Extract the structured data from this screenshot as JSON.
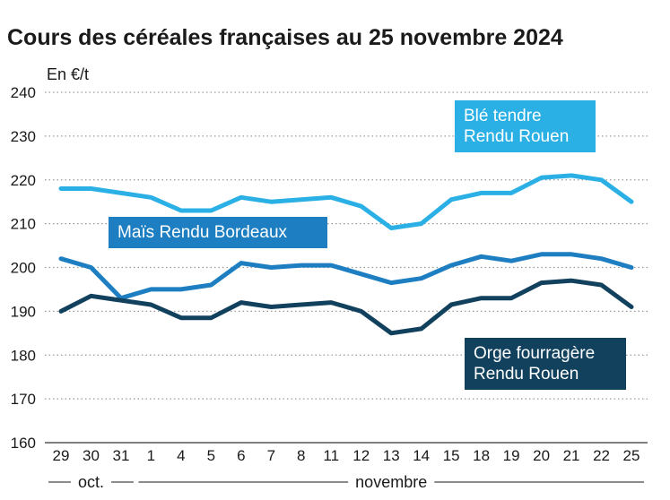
{
  "chart_data": {
    "type": "line",
    "title": "Cours des céréales françaises au 25 novembre 2024",
    "ylabel": "En €/t",
    "xlabel": "",
    "ylim": [
      160,
      240
    ],
    "yticks": [
      160,
      170,
      180,
      190,
      200,
      210,
      220,
      230,
      240
    ],
    "grid": "horizontal-dotted",
    "categories": [
      "29",
      "30",
      "31",
      "1",
      "4",
      "5",
      "6",
      "7",
      "8",
      "11",
      "12",
      "13",
      "14",
      "15",
      "18",
      "19",
      "20",
      "21",
      "22",
      "25"
    ],
    "month_groups": [
      {
        "label": "oct.",
        "start": 0,
        "end": 2
      },
      {
        "label": "novembre",
        "start": 3,
        "end": 19
      }
    ],
    "series": [
      {
        "name": "Blé tendre Rendu Rouen",
        "label_lines": [
          "Blé tendre",
          "Rendu Rouen"
        ],
        "color": "#2bb0e6",
        "values": [
          218,
          218,
          217,
          216,
          213,
          213,
          216,
          215,
          215.5,
          216,
          214,
          209,
          210,
          215.5,
          217,
          217,
          220.5,
          221,
          220,
          215
        ]
      },
      {
        "name": "Maïs Rendu Bordeaux",
        "label_lines": [
          "Maïs Rendu Bordeaux"
        ],
        "color": "#1e7ec2",
        "values": [
          202,
          200,
          193,
          195,
          195,
          196,
          201,
          200,
          200.5,
          200.5,
          198.5,
          196.5,
          197.5,
          200.5,
          202.5,
          201.5,
          203,
          203,
          202,
          200
        ]
      },
      {
        "name": "Orge fourragère Rendu Rouen",
        "label_lines": [
          "Orge fourragère",
          "Rendu Rouen"
        ],
        "color": "#12415e",
        "values": [
          190,
          193.5,
          192.5,
          191.5,
          188.5,
          188.5,
          192,
          191,
          191.5,
          192,
          190,
          185,
          186,
          191.5,
          193,
          193,
          196.5,
          197,
          196,
          191
        ]
      }
    ]
  }
}
